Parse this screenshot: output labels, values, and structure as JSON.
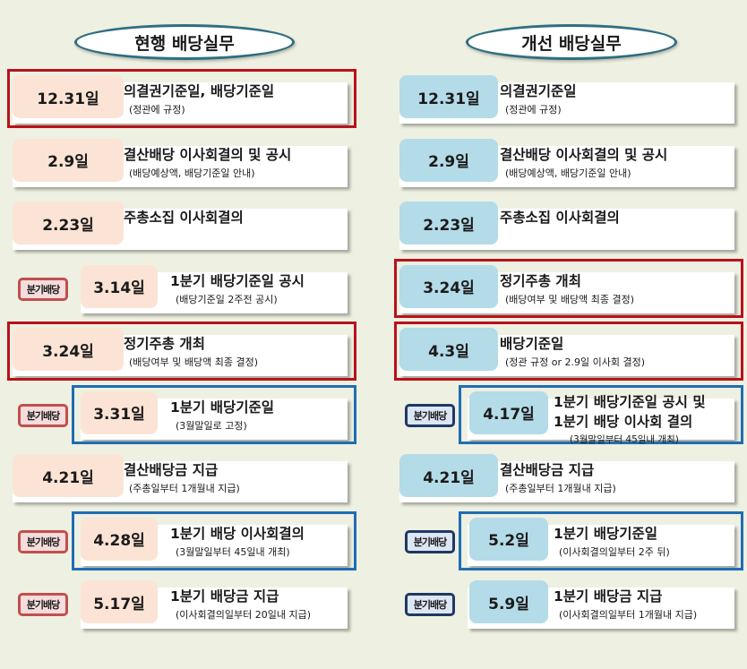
{
  "current": {
    "heading": "현행 배당실무",
    "rows": [
      {
        "date": "12.31일",
        "title": "의결권기준일, 배당기준일",
        "sub": "(정관에 규정)",
        "quarterly": false,
        "highlight": "red"
      },
      {
        "date": "2.9일",
        "title": "결산배당 이사회결의 및 공시",
        "sub": "(배당예상액, 배당기준일 안내)",
        "quarterly": false,
        "highlight": ""
      },
      {
        "date": "2.23일",
        "title": "주총소집 이사회결의",
        "sub": "",
        "quarterly": false,
        "highlight": ""
      },
      {
        "date": "3.14일",
        "title": "1분기 배당기준일 공시",
        "sub": "(배당기준일 2주전 공시)",
        "quarterly": true,
        "highlight": ""
      },
      {
        "date": "3.24일",
        "title": "정기주총 개최",
        "sub": "(배당여부 및 배당액 최종 결정)",
        "quarterly": false,
        "highlight": "red"
      },
      {
        "date": "3.31일",
        "title": "1분기 배당기준일",
        "sub": "(3월말일로 고정)",
        "quarterly": true,
        "highlight": "blue"
      },
      {
        "date": "4.21일",
        "title": "결산배당금 지급",
        "sub": "(주총일부터 1개월내 지급)",
        "quarterly": false,
        "highlight": ""
      },
      {
        "date": "4.28일",
        "title": "1분기 배당 이사회결의",
        "sub": "(3월말일부터 45일내 개최)",
        "quarterly": true,
        "highlight": "blue"
      },
      {
        "date": "5.17일",
        "title": "1분기 배당금 지급",
        "sub": "(이사회결의일부터 20일내 지급)",
        "quarterly": true,
        "highlight": ""
      }
    ]
  },
  "improved": {
    "heading": "개선 배당실무",
    "rows": [
      {
        "date": "12.31일",
        "title": "의결권기준일",
        "sub": "(정관에 규정)",
        "quarterly": false,
        "highlight": ""
      },
      {
        "date": "2.9일",
        "title": "결산배당 이사회결의 및 공시",
        "sub": "(배당예상액, 배당기준일 안내)",
        "quarterly": false,
        "highlight": ""
      },
      {
        "date": "2.23일",
        "title": "주총소집 이사회결의",
        "sub": "",
        "quarterly": false,
        "highlight": ""
      },
      {
        "date": "3.24일",
        "title": "정기주총 개최",
        "sub": "(배당여부 및 배당액 최종 결정)",
        "quarterly": false,
        "highlight": "red"
      },
      {
        "date": "4.3일",
        "title": "배당기준일",
        "sub": "(정관 규정 or 2.9일 이사회 결정)",
        "quarterly": false,
        "highlight": "red"
      },
      {
        "date": "4.17일",
        "title": "1분기 배당기준일 공시 및",
        "title2": "1분기 배당 이사회 결의",
        "sub": "(3월말일부터 45일내 개최)",
        "quarterly": true,
        "highlight": "blue"
      },
      {
        "date": "4.21일",
        "title": "결산배당금 지급",
        "sub": "(주총일부터 1개월내 지급)",
        "quarterly": false,
        "highlight": ""
      },
      {
        "date": "5.2일",
        "title": "1분기 배당기준일",
        "sub": "(이사회결의일부터 2주 뒤)",
        "quarterly": true,
        "highlight": "blue"
      },
      {
        "date": "5.9일",
        "title": "1분기 배당금 지급",
        "sub": "(이사회결의일부터 1개월내 지급)",
        "quarterly": true,
        "highlight": ""
      }
    ]
  },
  "badge_label": "분기배당",
  "colors": {
    "current_date_bg": "#fbe4d5",
    "improved_date_bg": "#b4dbe8",
    "red_highlight": "#b8121a",
    "blue_highlight": "#1f6db3"
  }
}
